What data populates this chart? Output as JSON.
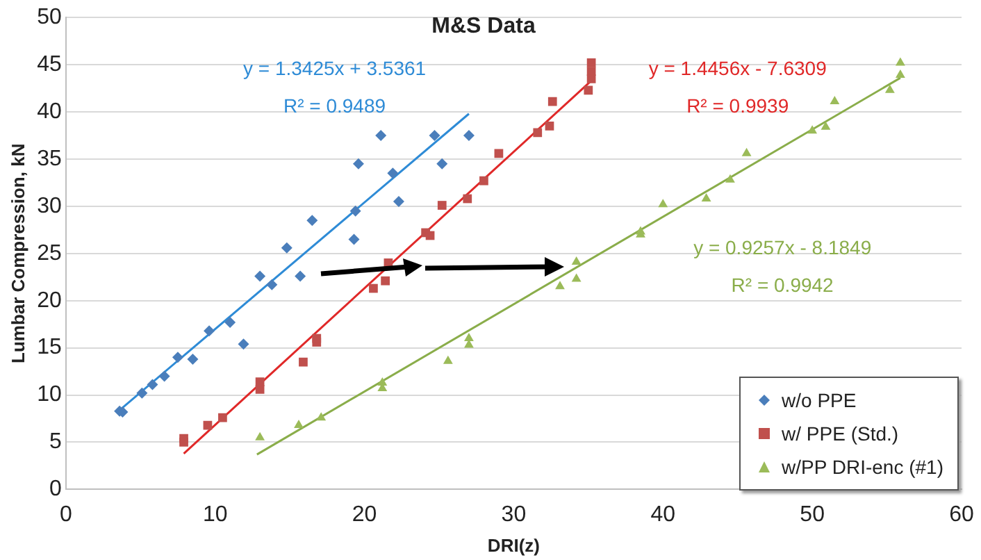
{
  "chart_data": {
    "type": "scatter",
    "title": "M&S Data",
    "xlabel": "DRI(z)",
    "ylabel": "Lumbar Compression, kN",
    "xlim": [
      0,
      60
    ],
    "xticks": [
      0,
      10,
      20,
      30,
      40,
      50,
      60
    ],
    "ylim": [
      0,
      50
    ],
    "yticks": [
      0,
      5,
      10,
      15,
      20,
      25,
      30,
      35,
      40,
      45,
      50
    ],
    "grid": "y",
    "legend": "bottom right",
    "series": [
      {
        "name": "w/o PPE",
        "color": "#4a7ebb",
        "marker": "diamond",
        "x": [
          3.6,
          3.8,
          5.1,
          5.8,
          6.6,
          7.5,
          8.5,
          9.6,
          11,
          11.9,
          13,
          13.8,
          14.8,
          15.7,
          16.5,
          19.3,
          19.4,
          19.6,
          21.1,
          21.9,
          22.3,
          24.7,
          25.2,
          27
        ],
        "values": [
          8.3,
          8.2,
          10.2,
          11.1,
          12,
          14,
          13.8,
          16.8,
          17.7,
          15.4,
          22.6,
          21.7,
          25.6,
          22.6,
          28.5,
          26.5,
          29.5,
          34.5,
          37.5,
          33.5,
          30.5,
          37.5,
          34.5,
          37.5
        ]
      },
      {
        "name": "w/ PPE (Std.)",
        "color": "#c0504d",
        "marker": "square",
        "x": [
          7.9,
          7.9,
          9.5,
          10.5,
          13,
          13,
          15.9,
          16.8,
          16.8,
          20.6,
          21.4,
          21.6,
          24.1,
          24.4,
          25.2,
          26.9,
          28,
          29,
          31.6,
          32.4,
          32.6,
          35,
          35.2,
          35.2,
          35.2
        ],
        "values": [
          5.4,
          5,
          6.8,
          7.6,
          11.4,
          10.6,
          13.5,
          15.6,
          16,
          21.3,
          22.1,
          24,
          27.2,
          26.9,
          30.1,
          30.8,
          32.7,
          35.6,
          37.8,
          38.5,
          41.1,
          42.3,
          45.2,
          44.3,
          43.5
        ]
      },
      {
        "name": "w/PP DRI-enc (#1)",
        "color": "#9bbb59",
        "marker": "triangle",
        "x": [
          13,
          15.6,
          17.1,
          21.2,
          21.2,
          25.6,
          27,
          27,
          33.1,
          34.2,
          34.2,
          38.5,
          38.5,
          40,
          42.9,
          44.5,
          45.6,
          50,
          50.9,
          51.5,
          55.2,
          55.9,
          55.9
        ],
        "values": [
          5.5,
          6.8,
          7.6,
          11.3,
          10.7,
          13.6,
          16,
          15.3,
          21.5,
          22.3,
          24.1,
          27,
          27.3,
          30.2,
          30.8,
          32.8,
          35.6,
          38,
          38.4,
          41.1,
          42.3,
          45.2,
          43.9
        ]
      },
      {
        "type": "line",
        "color": "#2e8bd6",
        "marker": "none",
        "x": [
          3.6,
          27
        ],
        "values": [
          8.4,
          39.8
        ]
      },
      {
        "type": "line",
        "color": "#e02828",
        "marker": "none",
        "x": [
          7.9,
          35.2
        ],
        "values": [
          3.8,
          43.3
        ]
      },
      {
        "type": "line",
        "color": "#8aad4a",
        "marker": "none",
        "x": [
          12.8,
          55.9
        ],
        "values": [
          3.7,
          43.6
        ]
      }
    ],
    "annotations": [
      "y = 1.3425x + 3.5361",
      "R² = 0.9489",
      "y = 1.4456x - 7.6309",
      "R² = 0.9939",
      "y = 0.9257x - 8.1849",
      "R² = 0.9942"
    ]
  }
}
